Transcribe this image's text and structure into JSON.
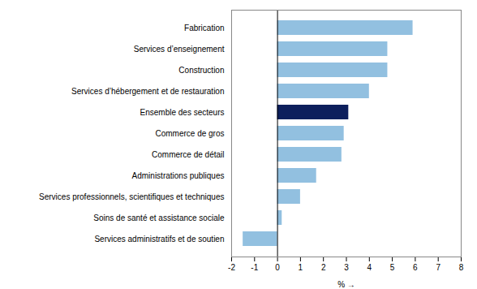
{
  "chart_data": {
    "type": "bar",
    "orientation": "horizontal",
    "categories": [
      "Services administratifs et de soutien",
      "Soins de santé et assistance sociale",
      "Services professionnels, scientifiques et techniques",
      "Administrations publiques",
      "Commerce de détail",
      "Commerce de gros",
      "Ensemble des secteurs",
      "Services d’hébergement et de restauration",
      "Construction",
      "Services d’enseignement",
      "Fabrication"
    ],
    "values": [
      -1.5,
      0.2,
      1.0,
      1.7,
      2.8,
      2.9,
      3.1,
      4.0,
      4.8,
      4.8,
      5.9
    ],
    "colors": [
      "#92c0e0",
      "#92c0e0",
      "#92c0e0",
      "#92c0e0",
      "#92c0e0",
      "#92c0e0",
      "#0d1f5c",
      "#92c0e0",
      "#92c0e0",
      "#92c0e0",
      "#92c0e0"
    ],
    "xlim": [
      -2,
      8
    ],
    "xticks": [
      -2,
      -1,
      0,
      1,
      2,
      3,
      4,
      5,
      6,
      7,
      8
    ],
    "xlabel": "%",
    "grid": false
  }
}
